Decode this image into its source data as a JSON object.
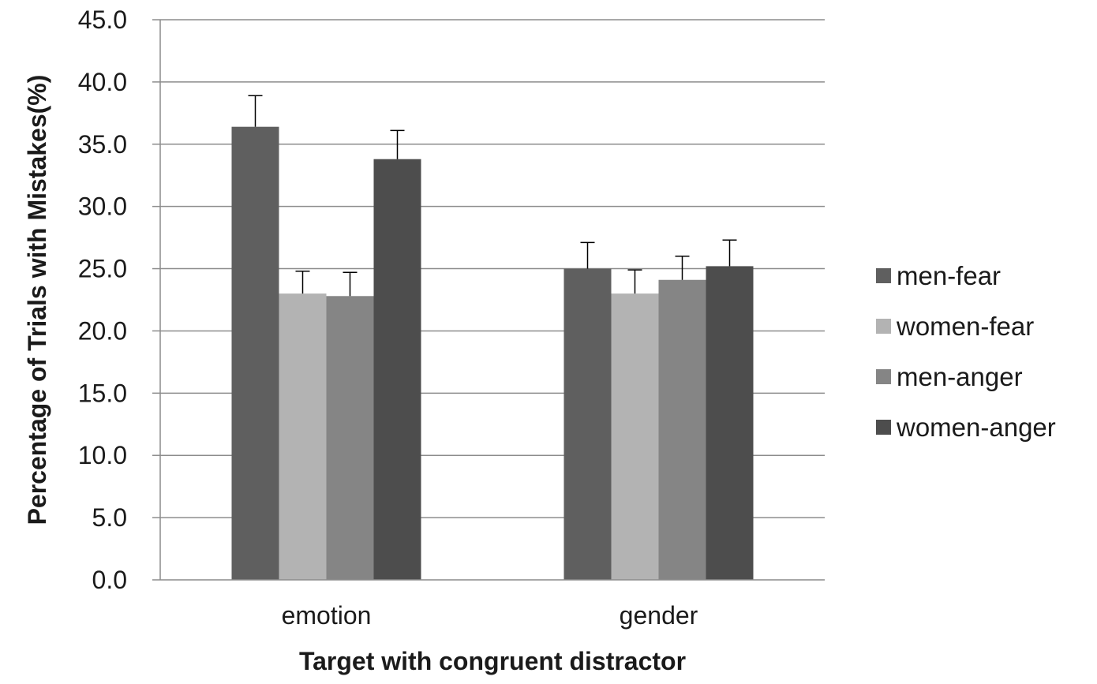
{
  "chart_data": {
    "type": "bar",
    "title": "",
    "xlabel": "Target with congruent distractor",
    "ylabel": "Percentage of Trials with Mistakes(%)",
    "ylim": [
      0,
      45
    ],
    "yticks": [
      "0.0",
      "5.0",
      "10.0",
      "15.0",
      "20.0",
      "25.0",
      "30.0",
      "35.0",
      "40.0",
      "45.0"
    ],
    "grid": true,
    "legend_position": "right",
    "categories": [
      "emotion",
      "gender"
    ],
    "series": [
      {
        "name": "men-fear",
        "color": "#5f5f5f",
        "values": [
          36.4,
          25.0
        ],
        "errors": [
          2.5,
          2.1
        ]
      },
      {
        "name": "women-fear",
        "color": "#b3b3b3",
        "values": [
          23.0,
          23.0
        ],
        "errors": [
          1.8,
          1.9
        ]
      },
      {
        "name": "men-anger",
        "color": "#858585",
        "values": [
          22.8,
          24.1
        ],
        "errors": [
          1.9,
          1.9
        ]
      },
      {
        "name": "women-anger",
        "color": "#4d4d4d",
        "values": [
          33.8,
          25.2
        ],
        "errors": [
          2.3,
          2.1
        ]
      }
    ]
  }
}
